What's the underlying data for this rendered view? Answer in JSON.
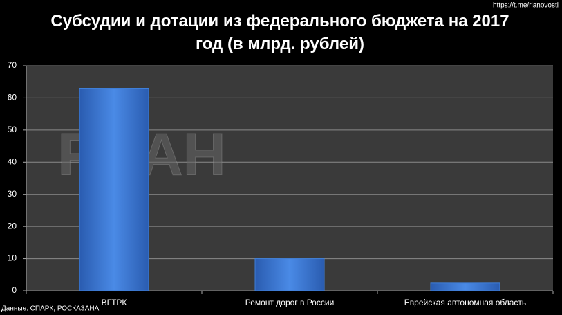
{
  "chart_data": {
    "type": "bar",
    "title": "Субсудии и дотации из федерального бюджета на 2017 год (в млрд. рублей)",
    "source": "Данные: СПАРК, РОСКАЗАНА",
    "link": "https://t.me/rianovosti",
    "watermark": "РИАН",
    "categories": [
      "ВГТРК",
      "Ремонт дорог в России",
      "Еврейская автономная область"
    ],
    "values": [
      63,
      10,
      2.4
    ],
    "color": "#3f7fd8",
    "ylim": [
      0,
      70
    ],
    "yticks": [
      0,
      10,
      20,
      30,
      40,
      50,
      60,
      70
    ],
    "grid": true
  }
}
